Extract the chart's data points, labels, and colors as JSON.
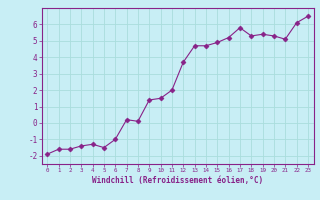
{
  "x": [
    0,
    1,
    2,
    3,
    4,
    5,
    6,
    7,
    8,
    9,
    10,
    11,
    12,
    13,
    14,
    15,
    16,
    17,
    18,
    19,
    20,
    21,
    22,
    23
  ],
  "y": [
    -1.9,
    -1.6,
    -1.6,
    -1.4,
    -1.3,
    -1.5,
    -1.0,
    0.2,
    0.1,
    1.4,
    1.5,
    2.0,
    3.7,
    4.7,
    4.7,
    4.9,
    5.2,
    5.8,
    5.3,
    5.4,
    5.3,
    5.1,
    6.1,
    6.5
  ],
  "line_color": "#882288",
  "marker": "D",
  "marker_size": 2.5,
  "bg_color": "#c8eef5",
  "plot_bg_color": "#c8eef5",
  "grid_color": "#aadddd",
  "axis_label_color": "#882288",
  "tick_color": "#882288",
  "spine_color": "#882288",
  "xlabel": "Windchill (Refroidissement éolien,°C)",
  "xlim": [
    -0.5,
    23.5
  ],
  "ylim": [
    -2.5,
    7.0
  ],
  "yticks": [
    -2,
    -1,
    0,
    1,
    2,
    3,
    4,
    5,
    6
  ],
  "xticks": [
    0,
    1,
    2,
    3,
    4,
    5,
    6,
    7,
    8,
    9,
    10,
    11,
    12,
    13,
    14,
    15,
    16,
    17,
    18,
    19,
    20,
    21,
    22,
    23
  ]
}
